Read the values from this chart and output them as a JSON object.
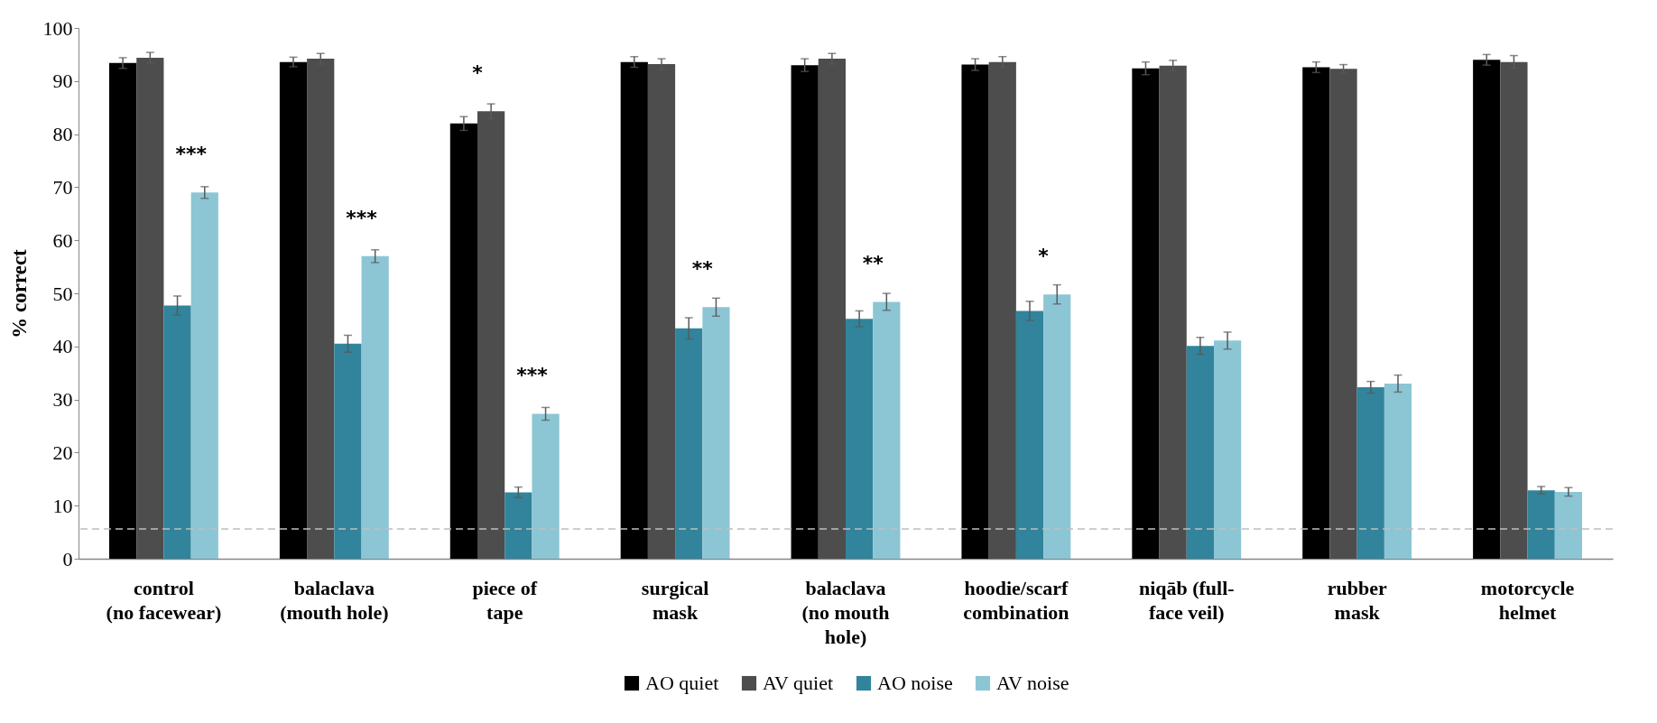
{
  "chart_data": {
    "type": "bar",
    "ylabel": "% correct",
    "categories": [
      "control\n(no facewear)",
      "balaclava\n(mouth hole)",
      "piece of\ntape",
      "surgical\nmask",
      "balaclava\n(no mouth\nhole)",
      "hoodie/scarf\ncombination",
      "niqāb (full-\nface veil)",
      "rubber\nmask",
      "motorcycle\nhelmet"
    ],
    "series": [
      {
        "name": "AO quiet",
        "color": "#000000",
        "values": [
          93.4,
          93.6,
          82,
          93.6,
          93,
          93.1,
          92.4,
          92.6,
          94
        ],
        "errors": [
          1,
          0.9,
          1.3,
          1,
          1.2,
          1.1,
          1.2,
          1,
          1
        ]
      },
      {
        "name": "AV quiet",
        "color": "#4d4d4d",
        "values": [
          94.4,
          94.2,
          84.3,
          93.2,
          94.2,
          93.6,
          92.9,
          92.3,
          93.6
        ],
        "errors": [
          1,
          1,
          1.4,
          1,
          1,
          1,
          1,
          0.8,
          1.2
        ]
      },
      {
        "name": "AO noise",
        "color": "#31849b",
        "values": [
          47.7,
          40.5,
          12.5,
          43.4,
          45.2,
          46.7,
          40.1,
          32.3,
          12.9
        ],
        "errors": [
          1.8,
          1.6,
          1,
          2,
          1.5,
          1.8,
          1.6,
          1.1,
          0.7
        ]
      },
      {
        "name": "AV noise",
        "color": "#8cc6d5",
        "values": [
          69,
          57,
          27.3,
          47.4,
          48.4,
          49.8,
          41.1,
          33,
          12.6
        ],
        "errors": [
          1.1,
          1.2,
          1.2,
          1.7,
          1.6,
          1.8,
          1.6,
          1.6,
          0.8
        ]
      }
    ],
    "ylim": [
      0,
      100
    ],
    "yticks": [
      0,
      10,
      20,
      30,
      40,
      50,
      60,
      70,
      80,
      90,
      100
    ],
    "ref_lines": [
      {
        "axis": "y",
        "value": 5.6,
        "color": "#bfbfbf",
        "line_style": "dashed"
      }
    ],
    "annotations": [
      {
        "text": "***",
        "x": "control\n(no facewear)",
        "y": 69
      },
      {
        "text": "***",
        "x": "balaclava\n(mouth hole)",
        "y": 57
      },
      {
        "text": "*",
        "x": "piece of\ntape",
        "y": 84.3
      },
      {
        "text": "***",
        "x": "piece of\ntape",
        "y": 27.3
      },
      {
        "text": "**",
        "x": "surgical\nmask",
        "y": 47.4
      },
      {
        "text": "**",
        "x": "balaclava\n(no mouth\nhole)",
        "y": 48.4
      },
      {
        "text": "*",
        "x": "hoodie/scarf\ncombination",
        "y": 49.8
      }
    ],
    "grid": false,
    "legend": "bottom"
  }
}
